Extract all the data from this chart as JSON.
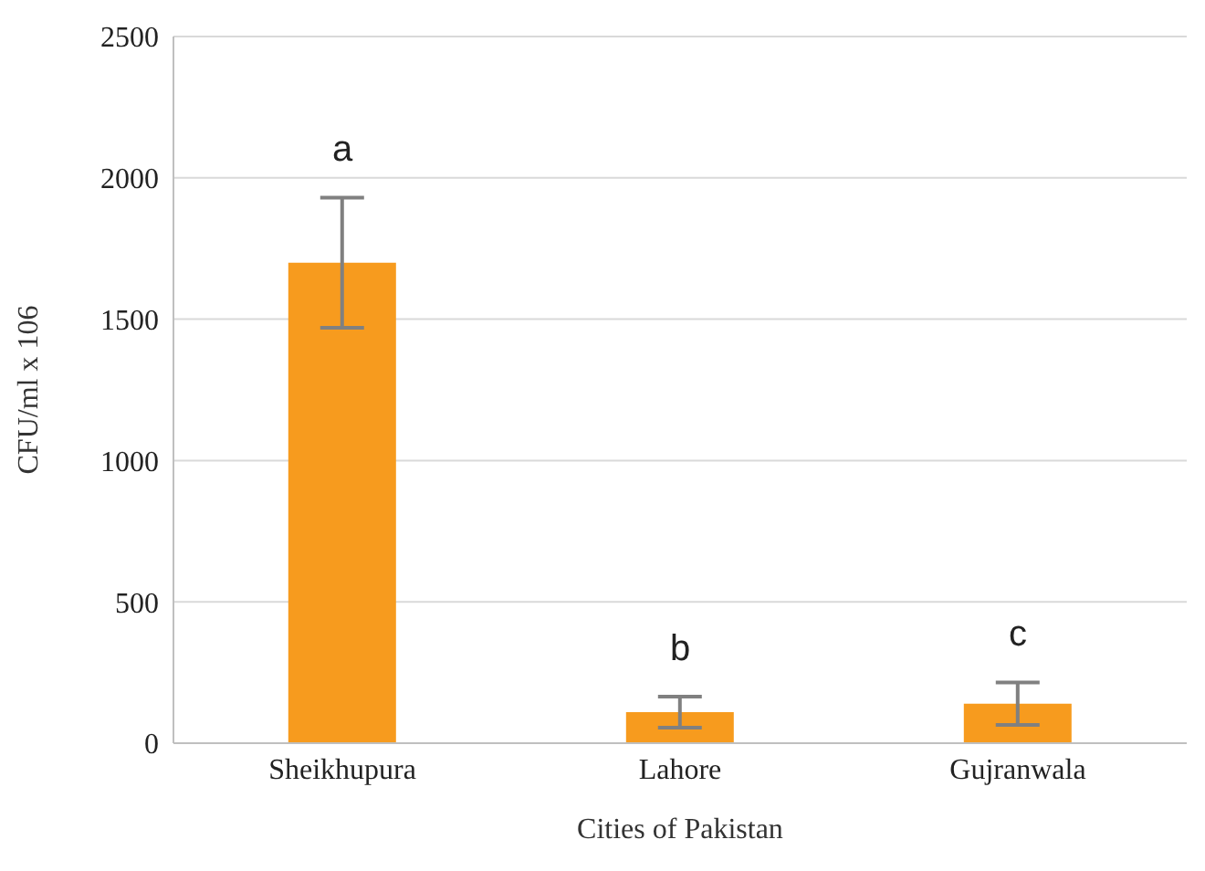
{
  "chart_data": {
    "type": "bar",
    "xlabel": "Cities of Pakistan",
    "ylabel": "CFU/ml x 106",
    "categories": [
      "Sheikhupura",
      "Lahore",
      "Gujranwala"
    ],
    "values": [
      1700,
      110,
      140
    ],
    "errors": [
      230,
      55,
      75
    ],
    "color": "#f79b1e",
    "ylim": [
      0,
      2500
    ],
    "yticks": [
      0,
      500,
      1000,
      1500,
      2000,
      2500
    ],
    "grid": "y",
    "annotations": [
      "a",
      "b",
      "c"
    ]
  }
}
